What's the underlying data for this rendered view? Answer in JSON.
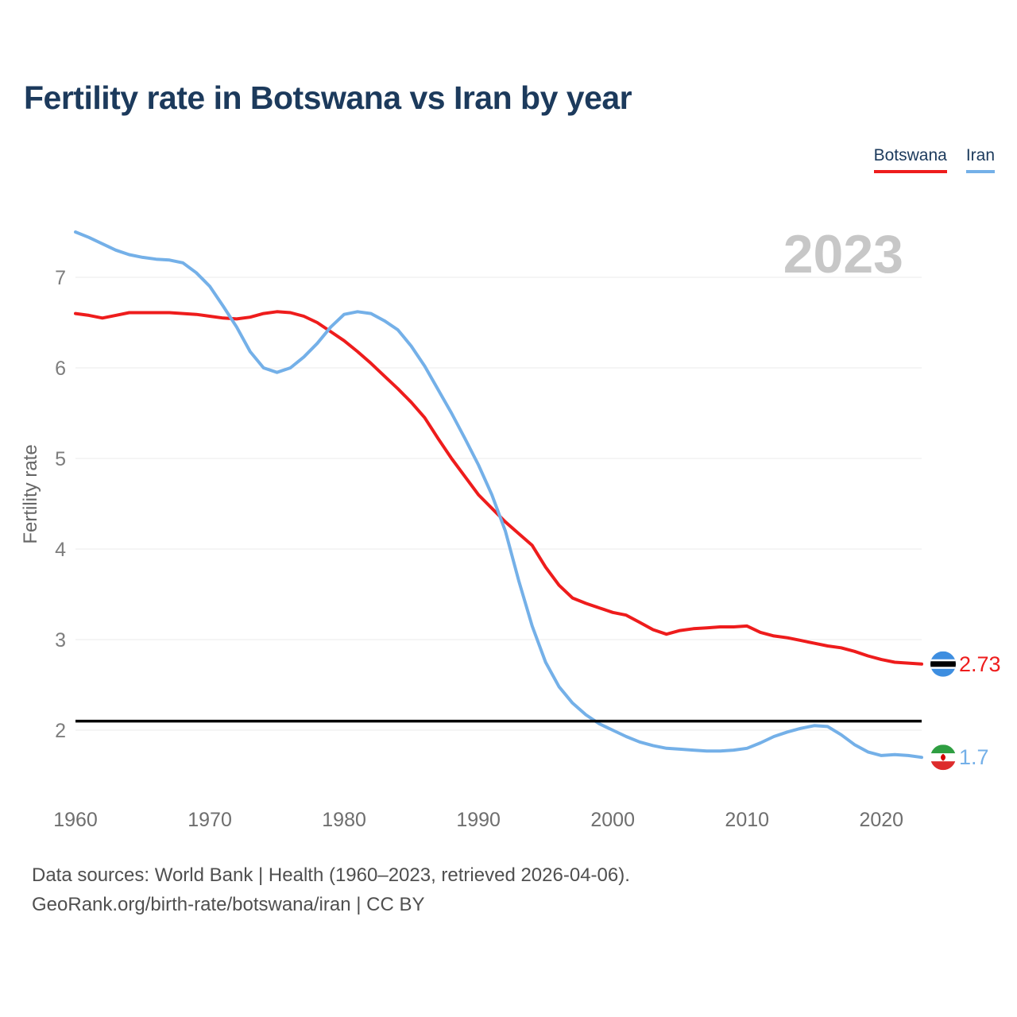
{
  "header": {
    "title": "Fertility rate in Botswana vs Iran by year"
  },
  "legend": {
    "items": [
      {
        "label": "Botswana",
        "color": "#ee1c1c"
      },
      {
        "label": "Iran",
        "color": "#74b0e8"
      }
    ]
  },
  "chart_data": {
    "type": "line",
    "title": "Fertility rate in Botswana vs Iran by year",
    "xlabel": "",
    "ylabel": "Fertility rate",
    "watermark": "2023",
    "grid": true,
    "legend_position": "top-right",
    "xlim": [
      1960,
      2023
    ],
    "ylim": [
      1.55,
      7.7
    ],
    "x_ticks": [
      1960,
      1970,
      1980,
      1990,
      2000,
      2010,
      2020
    ],
    "y_ticks": [
      2,
      3,
      4,
      5,
      6,
      7
    ],
    "reference_line": {
      "value": 2.1,
      "color": "#000000"
    },
    "x": [
      1960,
      1961,
      1962,
      1963,
      1964,
      1965,
      1966,
      1967,
      1968,
      1969,
      1970,
      1971,
      1972,
      1973,
      1974,
      1975,
      1976,
      1977,
      1978,
      1979,
      1980,
      1981,
      1982,
      1983,
      1984,
      1985,
      1986,
      1987,
      1988,
      1989,
      1990,
      1991,
      1992,
      1993,
      1994,
      1995,
      1996,
      1997,
      1998,
      1999,
      2000,
      2001,
      2002,
      2003,
      2004,
      2005,
      2006,
      2007,
      2008,
      2009,
      2010,
      2011,
      2012,
      2013,
      2014,
      2015,
      2016,
      2017,
      2018,
      2019,
      2020,
      2021,
      2022,
      2023
    ],
    "series": [
      {
        "name": "Botswana",
        "color": "#ee1c1c",
        "end_label": "2.73",
        "flag": "botswana",
        "flag_colors": {
          "field": "#3e8ee0",
          "band_outer": "#ffffff",
          "band_inner": "#000000"
        },
        "values": [
          6.6,
          6.58,
          6.55,
          6.58,
          6.61,
          6.61,
          6.61,
          6.61,
          6.6,
          6.59,
          6.57,
          6.55,
          6.54,
          6.56,
          6.6,
          6.62,
          6.61,
          6.57,
          6.5,
          6.4,
          6.3,
          6.18,
          6.05,
          5.91,
          5.77,
          5.62,
          5.45,
          5.22,
          5.0,
          4.8,
          4.6,
          4.45,
          4.3,
          4.17,
          4.04,
          3.8,
          3.6,
          3.46,
          3.4,
          3.35,
          3.3,
          3.27,
          3.19,
          3.11,
          3.06,
          3.1,
          3.12,
          3.13,
          3.14,
          3.14,
          3.15,
          3.08,
          3.04,
          3.02,
          2.99,
          2.96,
          2.93,
          2.91,
          2.87,
          2.82,
          2.78,
          2.75,
          2.74,
          2.73
        ]
      },
      {
        "name": "Iran",
        "color": "#74b0e8",
        "end_label": "1.7",
        "flag": "iran",
        "flag_colors": {
          "top": "#2e9e41",
          "middle": "#ffffff",
          "bottom": "#dd2c2c",
          "emblem": "#d40000"
        },
        "values": [
          7.5,
          7.44,
          7.37,
          7.3,
          7.25,
          7.22,
          7.2,
          7.19,
          7.16,
          7.05,
          6.9,
          6.68,
          6.45,
          6.18,
          6.0,
          5.95,
          6.0,
          6.12,
          6.27,
          6.45,
          6.59,
          6.62,
          6.6,
          6.52,
          6.42,
          6.24,
          6.02,
          5.76,
          5.5,
          5.22,
          4.93,
          4.6,
          4.2,
          3.65,
          3.15,
          2.75,
          2.48,
          2.3,
          2.17,
          2.07,
          2.0,
          1.93,
          1.87,
          1.83,
          1.8,
          1.79,
          1.78,
          1.77,
          1.77,
          1.78,
          1.8,
          1.86,
          1.93,
          1.98,
          2.02,
          2.05,
          2.04,
          1.95,
          1.84,
          1.76,
          1.72,
          1.73,
          1.72,
          1.7
        ]
      }
    ]
  },
  "footer": {
    "line1": "Data sources: World Bank | Health (1960–2023, retrieved 2026-04-06).",
    "line2": "GeoRank.org/birth-rate/botswana/iran | CC BY"
  }
}
